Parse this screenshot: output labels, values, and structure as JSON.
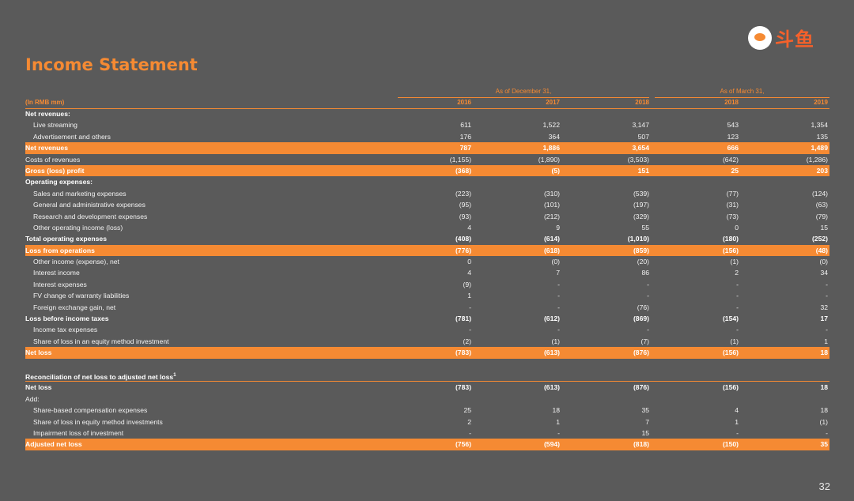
{
  "title": "Income Statement",
  "logo": {
    "name": "douyu-logo",
    "text": "斗鱼"
  },
  "page_number": "32",
  "header": {
    "unit": "(In RMB mm)",
    "groups": [
      {
        "label": "As of December 31,"
      },
      {
        "label": "As of March 31,"
      }
    ],
    "years": [
      "2016",
      "2017",
      "2018",
      "2018",
      "2019"
    ]
  },
  "rows": [
    {
      "label": "Net revenues:",
      "style": "bold",
      "values": [
        "",
        "",
        "",
        "",
        ""
      ]
    },
    {
      "label": "Live streaming",
      "style": "indent",
      "values": [
        "611",
        "1,522",
        "3,147",
        "543",
        "1,354"
      ]
    },
    {
      "label": "Advertisement and others",
      "style": "indent",
      "values": [
        "176",
        "364",
        "507",
        "123",
        "135"
      ]
    },
    {
      "label": "Net revenues",
      "style": "hl",
      "values": [
        "787",
        "1,886",
        "3,654",
        "666",
        "1,489"
      ]
    },
    {
      "label": "Costs of revenues",
      "style": "plain",
      "values": [
        "(1,155)",
        "(1,890)",
        "(3,503)",
        "(642)",
        "(1,286)"
      ]
    },
    {
      "label": "Gross (loss) profit",
      "style": "hl",
      "values": [
        "(368)",
        "(5)",
        "151",
        "25",
        "203"
      ]
    },
    {
      "label": "Operating expenses:",
      "style": "bold",
      "values": [
        "",
        "",
        "",
        "",
        ""
      ]
    },
    {
      "label": "Sales and marketing expenses",
      "style": "indent",
      "values": [
        "(223)",
        "(310)",
        "(539)",
        "(77)",
        "(124)"
      ]
    },
    {
      "label": "General and administrative expenses",
      "style": "indent",
      "values": [
        "(95)",
        "(101)",
        "(197)",
        "(31)",
        "(63)"
      ]
    },
    {
      "label": "Research and development expenses",
      "style": "indent",
      "values": [
        "(93)",
        "(212)",
        "(329)",
        "(73)",
        "(79)"
      ]
    },
    {
      "label": "Other operating income (loss)",
      "style": "indent",
      "values": [
        "4",
        "9",
        "55",
        "0",
        "15"
      ]
    },
    {
      "label": "Total operating expenses",
      "style": "bold",
      "values": [
        "(408)",
        "(614)",
        "(1,010)",
        "(180)",
        "(252)"
      ]
    },
    {
      "label": "Loss from operations",
      "style": "hl",
      "values": [
        "(776)",
        "(618)",
        "(859)",
        "(156)",
        "(48)"
      ]
    },
    {
      "label": "Other income (expense), net",
      "style": "indent",
      "values": [
        "0",
        "(0)",
        "(20)",
        "(1)",
        "(0)"
      ]
    },
    {
      "label": "Interest income",
      "style": "indent",
      "values": [
        "4",
        "7",
        "86",
        "2",
        "34"
      ]
    },
    {
      "label": "Interest expenses",
      "style": "indent",
      "values": [
        "(9)",
        "-",
        "-",
        "-",
        "-"
      ]
    },
    {
      "label": "FV change of warranty liabilities",
      "style": "indent",
      "values": [
        "1",
        "-",
        "-",
        "-",
        "-"
      ]
    },
    {
      "label": "Foreign exchange gain, net",
      "style": "indent",
      "values": [
        "-",
        "-",
        "(76)",
        "-",
        "32"
      ]
    },
    {
      "label": "Loss before income taxes",
      "style": "bold",
      "values": [
        "(781)",
        "(612)",
        "(869)",
        "(154)",
        "17"
      ]
    },
    {
      "label": "Income tax expenses",
      "style": "indent",
      "values": [
        "-",
        "-",
        "-",
        "-",
        "-"
      ]
    },
    {
      "label": "Share of loss in an equity method investment",
      "style": "indent",
      "values": [
        "(2)",
        "(1)",
        "(7)",
        "(1)",
        "1"
      ]
    },
    {
      "label": "Net loss",
      "style": "hl",
      "values": [
        "(783)",
        "(613)",
        "(876)",
        "(156)",
        "18"
      ]
    },
    {
      "label": "",
      "style": "spacer",
      "values": [
        "",
        "",
        "",
        "",
        ""
      ]
    },
    {
      "label": "Reconciliation of net loss to adjusted net loss",
      "sup": "1",
      "style": "bold rule",
      "values": [
        "",
        "",
        "",
        "",
        ""
      ]
    },
    {
      "label": "Net loss",
      "style": "bold",
      "values": [
        "(783)",
        "(613)",
        "(876)",
        "(156)",
        "18"
      ]
    },
    {
      "label": "Add:",
      "style": "plain",
      "values": [
        "",
        "",
        "",
        "",
        ""
      ]
    },
    {
      "label": "Share-based compensation expenses",
      "style": "indent",
      "values": [
        "25",
        "18",
        "35",
        "4",
        "18"
      ]
    },
    {
      "label": "Share of loss in equity method investments",
      "style": "indent",
      "values": [
        "2",
        "1",
        "7",
        "1",
        "(1)"
      ]
    },
    {
      "label": "Impairment loss of investment",
      "style": "indent",
      "values": [
        "-",
        "-",
        "15",
        "-",
        "-"
      ]
    },
    {
      "label": "Adjusted net loss",
      "style": "hl",
      "values": [
        "(756)",
        "(594)",
        "(818)",
        "(150)",
        "35"
      ]
    }
  ],
  "colors": {
    "accent": "#f58a33",
    "background": "#5a5a5a"
  }
}
